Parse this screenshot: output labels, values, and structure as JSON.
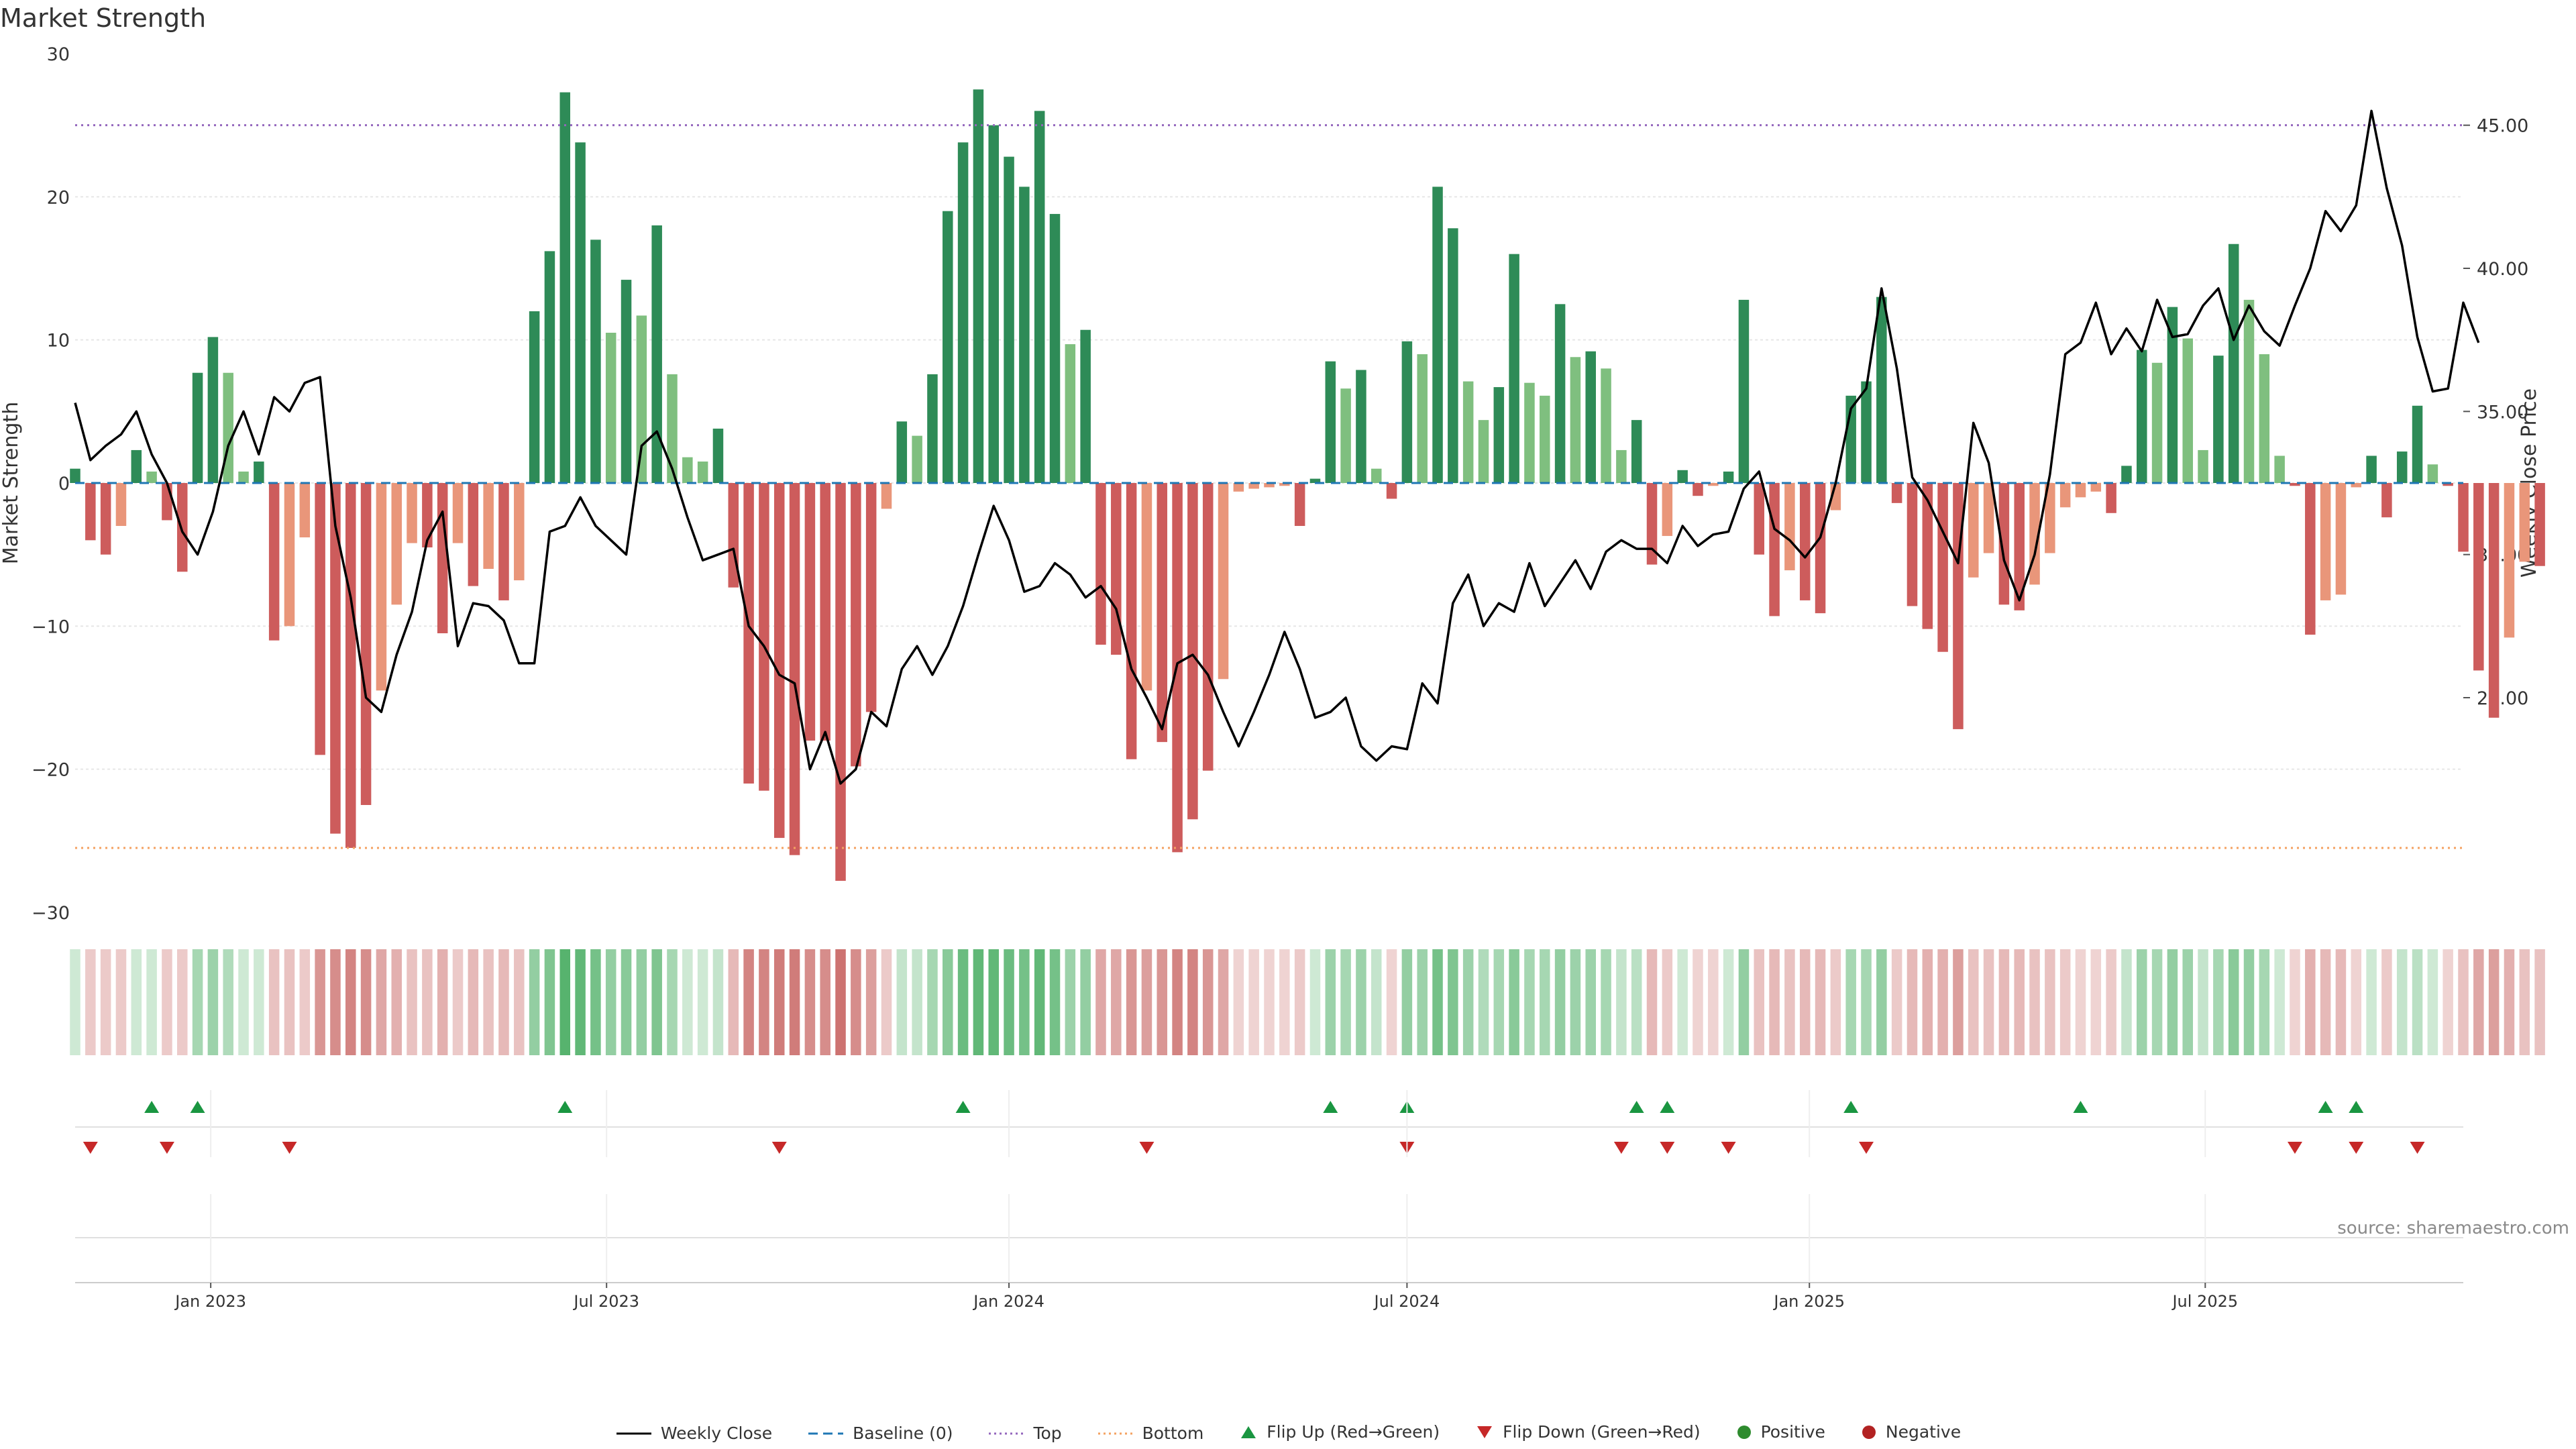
{
  "chart_data": {
    "type": "bar",
    "title": "Market Strength",
    "ylabel": "Market Strength",
    "y2label": "Weekly Close Price",
    "ylim": [
      -30,
      30
    ],
    "y2lim": [
      17.5,
      47.5
    ],
    "yticks": [
      "30",
      "20",
      "10",
      "0",
      "−10",
      "−20",
      "−30"
    ],
    "y2ticks": [
      "45.00",
      "40.00",
      "35.00",
      "30.00",
      "25.00"
    ],
    "xticks": [
      "Jan 2023",
      "Jul 2023",
      "Jan 2024",
      "Jul 2024",
      "Jan 2025",
      "Jul 2025"
    ],
    "x_start": "2022-10-31",
    "x_end": "2025-10-27",
    "x_step_days": 7,
    "top_level": 25,
    "bottom_level": -25.5,
    "strength": [
      1,
      -4,
      -5,
      -3,
      2.3,
      0.8,
      -2.6,
      -6.2,
      7.7,
      10.2,
      7.7,
      0.8,
      1.5,
      -11,
      -10,
      -3.8,
      -19,
      -24.5,
      -25.5,
      -22.5,
      -14.5,
      -8.5,
      -4.2,
      -4.5,
      -10.5,
      -4.2,
      -7.2,
      -6,
      -8.2,
      -6.8,
      12,
      16.2,
      27.3,
      23.8,
      17,
      10.5,
      14.2,
      11.7,
      18,
      7.6,
      1.8,
      1.5,
      3.8,
      -7.3,
      -21,
      -21.5,
      -24.8,
      -26,
      -18,
      -18,
      -27.8,
      -19.8,
      -16,
      -1.8,
      4.3,
      3.3,
      7.6,
      19,
      23.8,
      27.5,
      25,
      22.8,
      20.7,
      26,
      18.8,
      9.7,
      10.7,
      -11.3,
      -12,
      -19.3,
      -14.5,
      -18.1,
      -25.8,
      -23.5,
      -20.1,
      -13.7,
      -0.6,
      -0.4,
      -0.3,
      -0.2,
      -3,
      0.3,
      8.5,
      6.6,
      7.9,
      1,
      -1.1,
      9.9,
      9,
      20.7,
      17.8,
      7.1,
      4.4,
      6.7,
      16,
      7,
      6.1,
      12.5,
      8.8,
      9.2,
      8,
      2.3,
      4.4,
      -5.7,
      -3.7,
      0.9,
      -0.9,
      -0.2,
      0.8,
      12.8,
      -5,
      -9.3,
      -6.1,
      -8.2,
      -9.1,
      -1.9,
      6.1,
      7.1,
      13,
      -1.4,
      -8.6,
      -10.2,
      -11.8,
      -17.2,
      -6.6,
      -4.9,
      -8.5,
      -8.9,
      -7.1,
      -4.9,
      -1.7,
      -1,
      -0.6,
      -2.1,
      1.2,
      9.3,
      8.4,
      12.3,
      10.1,
      2.3,
      8.9,
      16.7,
      12.8,
      9,
      1.9,
      -0.2,
      -10.6,
      -8.2,
      -7.8,
      -0.3,
      1.9,
      -2.4,
      2.2,
      5.4,
      1.3,
      -0.2,
      -4.8,
      -13.1,
      -16.4,
      -10.8,
      -5.5,
      -5.8
    ],
    "weekly_close": [
      35.3,
      33.3,
      33.8,
      34.2,
      35,
      33.5,
      32.5,
      30.8,
      30,
      31.5,
      33.8,
      35,
      33.5,
      35.5,
      35,
      36,
      36.2,
      31,
      28.5,
      25,
      24.5,
      26.5,
      28,
      30.5,
      31.5,
      26.8,
      28.3,
      28.2,
      27.7,
      26.2,
      26.2,
      30.8,
      31,
      32,
      31,
      30.5,
      30,
      33.8,
      34.3,
      33,
      31.3,
      29.8,
      30,
      30.2,
      27.5,
      26.8,
      25.8,
      25.5,
      22.5,
      23.8,
      22,
      22.5,
      24.5,
      24,
      26,
      26.8,
      25.8,
      26.8,
      28.2,
      30,
      31.7,
      30.5,
      28.7,
      28.9,
      29.7,
      29.3,
      28.5,
      28.9,
      28.1,
      26,
      25,
      23.9,
      26.2,
      26.5,
      25.8,
      24.5,
      23.3,
      24.5,
      25.8,
      27.3,
      26,
      24.3,
      24.5,
      25,
      23.3,
      22.8,
      23.3,
      23.2,
      25.5,
      24.8,
      28.3,
      29.3,
      27.5,
      28.3,
      28,
      29.7,
      28.2,
      29,
      29.8,
      28.8,
      30.1,
      30.5,
      30.2,
      30.2,
      29.7,
      31,
      30.3,
      30.7,
      30.8,
      32.3,
      32.9,
      30.9,
      30.5,
      29.9,
      30.6,
      32.5,
      35.1,
      35.8,
      39.3,
      36.5,
      32.7,
      31.9,
      30.8,
      29.7,
      34.6,
      33.2,
      29.8,
      28.4,
      30,
      32.8,
      37,
      37.4,
      38.8,
      37,
      37.9,
      37.1,
      38.9,
      37.6,
      37.7,
      38.7,
      39.3,
      37.5,
      38.7,
      37.8,
      37.3,
      38.7,
      40,
      42,
      41.3,
      42.2,
      45.5,
      42.8,
      40.8,
      37.6,
      35.7,
      35.8,
      38.8,
      37.4
    ],
    "heat_alpha": [
      0.25,
      0.3,
      0.3,
      0.3,
      0.25,
      0.25,
      0.3,
      0.3,
      0.45,
      0.5,
      0.4,
      0.25,
      0.25,
      0.35,
      0.35,
      0.3,
      0.6,
      0.65,
      0.7,
      0.65,
      0.5,
      0.45,
      0.35,
      0.35,
      0.45,
      0.3,
      0.4,
      0.35,
      0.4,
      0.35,
      0.55,
      0.65,
      0.85,
      0.8,
      0.7,
      0.55,
      0.6,
      0.55,
      0.65,
      0.45,
      0.25,
      0.25,
      0.3,
      0.4,
      0.7,
      0.7,
      0.75,
      0.75,
      0.65,
      0.65,
      0.8,
      0.65,
      0.55,
      0.3,
      0.3,
      0.3,
      0.45,
      0.6,
      0.75,
      0.8,
      0.8,
      0.75,
      0.7,
      0.8,
      0.7,
      0.5,
      0.55,
      0.5,
      0.5,
      0.6,
      0.55,
      0.6,
      0.7,
      0.7,
      0.6,
      0.5,
      0.25,
      0.25,
      0.25,
      0.25,
      0.3,
      0.25,
      0.5,
      0.45,
      0.5,
      0.3,
      0.25,
      0.55,
      0.5,
      0.7,
      0.65,
      0.5,
      0.4,
      0.45,
      0.6,
      0.45,
      0.45,
      0.55,
      0.5,
      0.5,
      0.45,
      0.3,
      0.35,
      0.4,
      0.3,
      0.25,
      0.25,
      0.25,
      0.25,
      0.55,
      0.35,
      0.4,
      0.35,
      0.4,
      0.4,
      0.3,
      0.45,
      0.45,
      0.55,
      0.3,
      0.4,
      0.45,
      0.45,
      0.55,
      0.35,
      0.35,
      0.4,
      0.4,
      0.35,
      0.35,
      0.3,
      0.25,
      0.25,
      0.3,
      0.3,
      0.5,
      0.45,
      0.55,
      0.5,
      0.3,
      0.45,
      0.6,
      0.55,
      0.45,
      0.25,
      0.25,
      0.45,
      0.4,
      0.4,
      0.25,
      0.25,
      0.3,
      0.3,
      0.35,
      0.25,
      0.25,
      0.35,
      0.5,
      0.55,
      0.45,
      0.35,
      0.35
    ],
    "flip_up": [
      "2022-12-05",
      "2022-12-26",
      "2023-06-12",
      "2023-12-11",
      "2024-05-27",
      "2024-07-01",
      "2024-10-14",
      "2024-10-28",
      "2025-01-20",
      "2025-05-05",
      "2025-08-25",
      "2025-09-08"
    ],
    "flip_down": [
      "2022-11-07",
      "2022-12-12",
      "2023-02-06",
      "2023-09-18",
      "2024-03-04",
      "2024-07-01",
      "2024-10-07",
      "2024-10-28",
      "2024-11-25",
      "2025-01-27",
      "2025-08-11",
      "2025-09-08",
      "2025-10-06"
    ],
    "series": [
      {
        "name": "Weekly Close",
        "color": "#000000"
      },
      {
        "name": "Baseline (0)",
        "color": "#1f77b4"
      },
      {
        "name": "Top",
        "color": "#9467bd"
      },
      {
        "name": "Bottom",
        "color": "#f4a261"
      },
      {
        "name": "Flip Up (Red→Green)",
        "color": "#1a9641"
      },
      {
        "name": "Flip Down (Green→Red)",
        "color": "#c62828"
      },
      {
        "name": "Positive",
        "color": "#2e8b2e"
      },
      {
        "name": "Negative",
        "color": "#b22222"
      }
    ],
    "colors": {
      "pos_strong": "#2e8b57",
      "pos_weak": "#7fbf7f",
      "neg_strong": "#cd5c5c",
      "neg_weak": "#e9967a",
      "heat_pos": "#3aa655",
      "heat_neg": "#c0504d"
    },
    "grid": true,
    "legend_position": "bottom"
  },
  "source": "source: sharemaestro.com"
}
